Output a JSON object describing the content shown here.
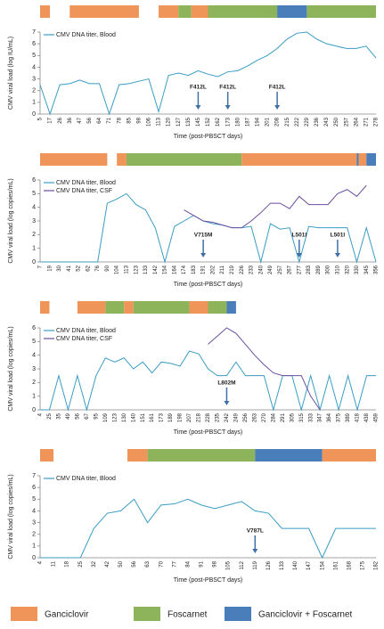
{
  "chart_data": [
    {
      "type": "line",
      "y_label": "CMV viral load (log IU/mL)",
      "x_label": "Time (post-PBSCT days)",
      "categories": [
        "5",
        "17",
        "26",
        "36",
        "47",
        "56",
        "64",
        "71",
        "78",
        "85",
        "98",
        "106",
        "113",
        "120",
        "127",
        "135",
        "145",
        "152",
        "162",
        "173",
        "180",
        "187",
        "194",
        "201",
        "208",
        "215",
        "222",
        "229",
        "236",
        "243",
        "250",
        "257",
        "264",
        "271",
        "278"
      ],
      "series": [
        {
          "name": "CMV DNA titer, Blood",
          "color": "#3a9cc4",
          "values": [
            2.5,
            0,
            2.5,
            2.6,
            2.9,
            2.6,
            2.6,
            0,
            2.5,
            2.6,
            2.8,
            3.0,
            0.2,
            3.3,
            3.5,
            3.3,
            3.7,
            3.4,
            3.2,
            3.6,
            3.7,
            4.1,
            4.6,
            5.0,
            5.6,
            6.4,
            6.9,
            7.0,
            6.4,
            6.0,
            5.8,
            5.6,
            5.6,
            5.8,
            4.8
          ]
        }
      ],
      "ylim": [
        0,
        7
      ],
      "yticks": [
        0,
        1,
        2,
        3,
        4,
        5,
        6,
        7
      ],
      "treatments": [
        {
          "start": 5,
          "end": 17,
          "color": "#f0955a"
        },
        {
          "start": 36,
          "end": 98,
          "color": "#f0955a"
        },
        {
          "start": 113,
          "end": 127,
          "color": "#f0955a"
        },
        {
          "start": 127,
          "end": 138,
          "color": "#8db45a"
        },
        {
          "start": 138,
          "end": 152,
          "color": "#f0955a"
        },
        {
          "start": 152,
          "end": 208,
          "color": "#8db45a"
        },
        {
          "start": 208,
          "end": 229,
          "color": "#4a7ebb"
        },
        {
          "start": 229,
          "end": 278,
          "color": "#8db45a"
        }
      ],
      "annotations": [
        {
          "label": "F412L",
          "day": 145
        },
        {
          "label": "F412L",
          "day": 173
        },
        {
          "label": "F412L",
          "day": 208
        }
      ]
    },
    {
      "type": "line",
      "y_label": "CMV viral load (log copies/mL)",
      "x_label": "Time (post-PBSCT days)",
      "categories": [
        "7",
        "19",
        "30",
        "41",
        "52",
        "62",
        "76",
        "90",
        "104",
        "113",
        "123",
        "133",
        "142",
        "154",
        "164",
        "174",
        "183",
        "191",
        "202",
        "211",
        "219",
        "226",
        "233",
        "240",
        "249",
        "257",
        "267",
        "277",
        "283",
        "289",
        "300",
        "310",
        "320",
        "330",
        "345",
        "356"
      ],
      "series": [
        {
          "name": "CMV DNA titer, Blood",
          "color": "#3a9cc4",
          "values": [
            0,
            0,
            0,
            0,
            0,
            0,
            0,
            4.3,
            4.6,
            5.0,
            4.2,
            3.8,
            2.5,
            0,
            2.6,
            3.0,
            3.4,
            3.0,
            2.8,
            2.7,
            2.5,
            2.5,
            2.6,
            0,
            2.8,
            2.4,
            2.5,
            0,
            2.6,
            2.5,
            2.5,
            2.5,
            2.5,
            0,
            2.5,
            0
          ]
        },
        {
          "name": "CMV DNA titer, CSF",
          "color": "#6b4fa0",
          "values": [
            null,
            null,
            null,
            null,
            null,
            null,
            null,
            null,
            null,
            null,
            null,
            null,
            null,
            null,
            null,
            3.8,
            3.4,
            3.0,
            2.9,
            2.7,
            2.5,
            2.5,
            3.0,
            3.6,
            4.3,
            4.3,
            3.9,
            4.8,
            4.2,
            4.2,
            4.2,
            5.0,
            5.3,
            4.8,
            5.6,
            null
          ]
        }
      ],
      "ylim": [
        0,
        6
      ],
      "yticks": [
        0,
        1,
        2,
        3,
        4,
        5,
        6
      ],
      "treatments": [
        {
          "start": 7,
          "end": 90,
          "color": "#f0955a"
        },
        {
          "start": 104,
          "end": 113,
          "color": "#f0955a"
        },
        {
          "start": 113,
          "end": 226,
          "color": "#8db45a"
        },
        {
          "start": 226,
          "end": 330,
          "color": "#f0955a"
        },
        {
          "start": 330,
          "end": 333,
          "color": "#4a7ebb"
        },
        {
          "start": 333,
          "end": 345,
          "color": "#f0955a"
        },
        {
          "start": 345,
          "end": 356,
          "color": "#4a7ebb"
        }
      ],
      "annotations": [
        {
          "label": "V715M",
          "day": 191
        },
        {
          "label": "L501I",
          "day": 277
        },
        {
          "label": "L501I",
          "day": 310
        }
      ]
    },
    {
      "type": "line",
      "y_label": "CMV viral load (log copies/mL)",
      "x_label": "Time (post-PBSCT days)",
      "categories": [
        "4",
        "25",
        "35",
        "49",
        "56",
        "67",
        "95",
        "109",
        "123",
        "130",
        "140",
        "151",
        "161",
        "173",
        "189",
        "198",
        "207",
        "218",
        "228",
        "235",
        "242",
        "249",
        "256",
        "263",
        "270",
        "284",
        "291",
        "305",
        "315",
        "333",
        "347",
        "364",
        "375",
        "389",
        "418",
        "438",
        "459"
      ],
      "series": [
        {
          "name": "CMV DNA titer, Blood",
          "color": "#3a9cc4",
          "values": [
            0,
            0,
            2.5,
            0,
            2.5,
            0,
            2.5,
            3.8,
            3.5,
            3.8,
            3.0,
            3.5,
            2.7,
            3.5,
            3.4,
            3.2,
            4.3,
            4.1,
            3.0,
            2.5,
            2.5,
            3.5,
            2.5,
            2.5,
            2.5,
            0,
            2.5,
            2.5,
            0,
            2.5,
            0,
            2.5,
            0,
            2.5,
            0,
            2.5,
            2.5
          ]
        },
        {
          "name": "CMV DNA titer, CSF",
          "color": "#6b4fa0",
          "values": [
            null,
            null,
            null,
            null,
            null,
            null,
            null,
            null,
            null,
            null,
            null,
            null,
            null,
            null,
            null,
            null,
            null,
            null,
            4.8,
            5.4,
            6.0,
            5.6,
            4.8,
            4.0,
            3.3,
            2.7,
            2.5,
            2.5,
            2.5,
            1.0,
            0,
            null,
            null,
            null,
            null,
            null,
            null
          ]
        }
      ],
      "ylim": [
        0,
        6
      ],
      "yticks": [
        0,
        1,
        2,
        3,
        4,
        5,
        6
      ],
      "treatments": [
        {
          "start": 4,
          "end": 25,
          "color": "#f0955a"
        },
        {
          "start": 56,
          "end": 109,
          "color": "#f0955a"
        },
        {
          "start": 109,
          "end": 130,
          "color": "#8db45a"
        },
        {
          "start": 130,
          "end": 140,
          "color": "#f0955a"
        },
        {
          "start": 140,
          "end": 207,
          "color": "#8db45a"
        },
        {
          "start": 207,
          "end": 228,
          "color": "#f0955a"
        },
        {
          "start": 228,
          "end": 242,
          "color": "#8db45a"
        },
        {
          "start": 242,
          "end": 249,
          "color": "#4a7ebb"
        }
      ],
      "annotations": [
        {
          "label": "L802M",
          "day": 242
        }
      ]
    },
    {
      "type": "line",
      "y_label": "CMV viral load (log copies/mL)",
      "x_label": "Time (post-PBSCT days)",
      "categories": [
        "4",
        "11",
        "18",
        "25",
        "32",
        "42",
        "50",
        "56",
        "63",
        "70",
        "77",
        "84",
        "91",
        "98",
        "105",
        "112",
        "119",
        "126",
        "133",
        "140",
        "147",
        "154",
        "161",
        "168",
        "175",
        "182"
      ],
      "series": [
        {
          "name": "CMV DNA titer, Blood",
          "color": "#3a9cc4",
          "values": [
            0,
            0,
            0,
            0,
            2.5,
            3.8,
            4.0,
            5.0,
            3.0,
            4.5,
            4.6,
            5.0,
            4.5,
            4.2,
            4.5,
            4.8,
            4.0,
            3.8,
            2.5,
            2.5,
            2.5,
            0,
            2.5,
            2.5,
            2.5,
            2.5
          ]
        }
      ],
      "ylim": [
        0,
        7
      ],
      "yticks": [
        0,
        1,
        2,
        3,
        4,
        5,
        6,
        7
      ],
      "treatments": [
        {
          "start": 4,
          "end": 11,
          "color": "#f0955a"
        },
        {
          "start": 53,
          "end": 63,
          "color": "#f0955a"
        },
        {
          "start": 63,
          "end": 119,
          "color": "#8db45a"
        },
        {
          "start": 119,
          "end": 154,
          "color": "#4a7ebb"
        },
        {
          "start": 154,
          "end": 182,
          "color": "#f0955a"
        }
      ],
      "annotations": [
        {
          "label": "V787L",
          "day": 119
        }
      ]
    }
  ],
  "treatment_legend": [
    {
      "name": "Ganciclovir",
      "color": "#f0955a"
    },
    {
      "name": "Foscarnet",
      "color": "#8db45a"
    },
    {
      "name": "Ganciclovir + Foscarnet",
      "color": "#4a7ebb"
    }
  ]
}
